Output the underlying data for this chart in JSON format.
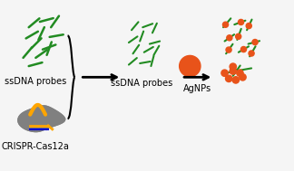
{
  "bg_color": "#f5f5f5",
  "text_color": "#000000",
  "dna_color": "#228B22",
  "agnp_color": "#E8531A",
  "cas12a_body_color": "#808080",
  "cas12a_handle_color": "#FFA500",
  "cas12a_rna_color": "#0000CD",
  "labels": {
    "ssdna_top": "ssDNA probes",
    "ssdna_mid": "ssDNA probes",
    "crispr": "CRISPR-Cas12a",
    "agnps": "AgNPs"
  },
  "font_size": 7
}
